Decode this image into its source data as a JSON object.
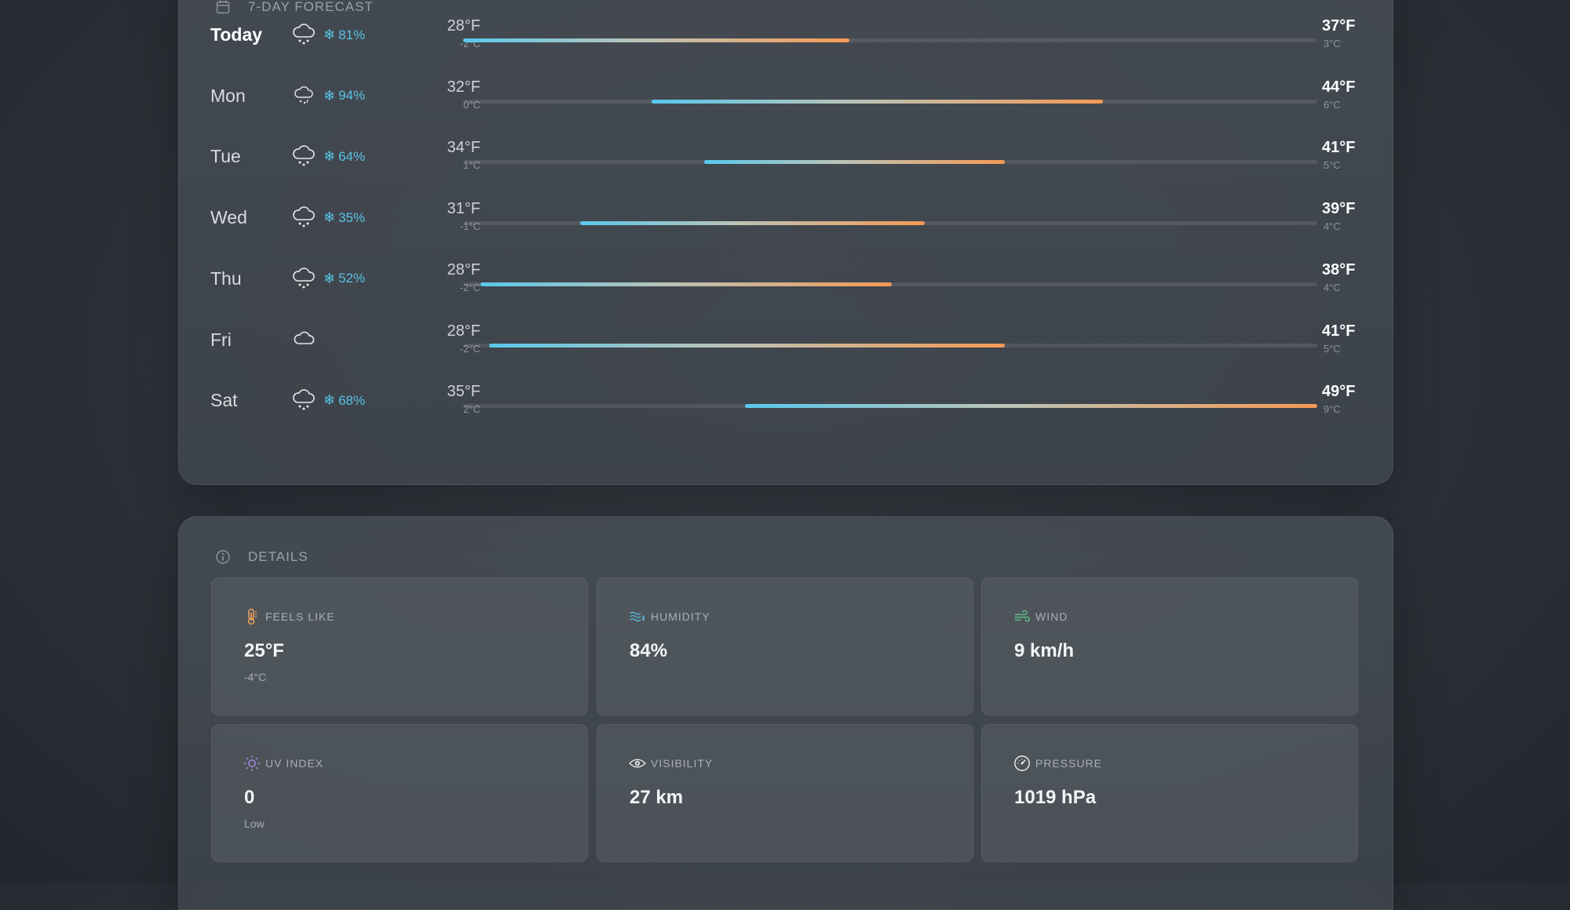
{
  "forecast": {
    "title": "7-Day Forecast",
    "days": [
      {
        "day": "Today",
        "icon": "snow-cloud-icon",
        "precip": "81%",
        "low_f": "28°F",
        "low_c": "-2°C",
        "high_f": "37°F",
        "high_c": "3°C",
        "range_start": 0.0,
        "range_end": 0.452
      },
      {
        "day": "Mon",
        "icon": "sleet-cloud-icon",
        "precip": "94%",
        "low_f": "32°F",
        "low_c": "0°C",
        "high_f": "44°F",
        "high_c": "6°C",
        "range_start": 0.221,
        "range_end": 0.749
      },
      {
        "day": "Tue",
        "icon": "snow-cloud-icon",
        "precip": "64%",
        "low_f": "34°F",
        "low_c": "1°C",
        "high_f": "41°F",
        "high_c": "5°C",
        "range_start": 0.282,
        "range_end": 0.634
      },
      {
        "day": "Wed",
        "icon": "snow-cloud-icon",
        "precip": "35%",
        "low_f": "31°F",
        "low_c": "-1°C",
        "high_f": "39°F",
        "high_c": "4°C",
        "range_start": 0.137,
        "range_end": 0.54
      },
      {
        "day": "Thu",
        "icon": "snow-cloud-icon",
        "precip": "52%",
        "low_f": "28°F",
        "low_c": "-2°C",
        "high_f": "38°F",
        "high_c": "4°C",
        "range_start": 0.02,
        "range_end": 0.502
      },
      {
        "day": "Fri",
        "icon": "cloud-icon",
        "precip": "",
        "low_f": "28°F",
        "low_c": "-2°C",
        "high_f": "41°F",
        "high_c": "5°C",
        "range_start": 0.03,
        "range_end": 0.634
      },
      {
        "day": "Sat",
        "icon": "snow-cloud-icon",
        "precip": "68%",
        "low_f": "35°F",
        "low_c": "2°C",
        "high_f": "49°F",
        "high_c": "9°C",
        "range_start": 0.33,
        "range_end": 1.0
      }
    ]
  },
  "details": {
    "title": "Details",
    "cards": [
      {
        "name": "feels-like",
        "label": "Feels Like",
        "value": "25°F",
        "sub": "-4°C",
        "icon": "thermometer-icon",
        "accent": "#f0a15e"
      },
      {
        "name": "humidity",
        "label": "Humidity",
        "value": "84%",
        "sub": "",
        "icon": "humidity-waves-icon",
        "accent": "#58b9dc"
      },
      {
        "name": "wind",
        "label": "Wind",
        "value": "9 km/h",
        "sub": "",
        "icon": "wind-icon",
        "accent": "#5ec98a"
      },
      {
        "name": "uv-index",
        "label": "UV Index",
        "value": "0",
        "sub": "Low",
        "icon": "sun-icon",
        "accent": "#a38ae0"
      },
      {
        "name": "visibility",
        "label": "Visibility",
        "value": "27 km",
        "sub": "",
        "icon": "eye-icon",
        "accent": "#e8eaed"
      },
      {
        "name": "pressure",
        "label": "Pressure",
        "value": "1019 hPa",
        "sub": "",
        "icon": "gauge-icon",
        "accent": "#e8eaed"
      }
    ]
  },
  "colors": {
    "precip": "#58c3e4",
    "bar_cold": "#59c8ec",
    "bar_warm": "#f59a55"
  }
}
